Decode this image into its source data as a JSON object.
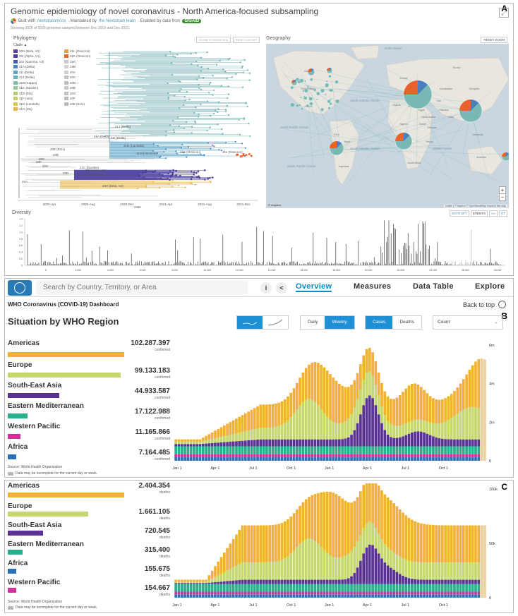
{
  "panel_a": {
    "letter": "A",
    "title": "Genomic epidemiology of novel coronavirus - North America-focused subsampling",
    "built_with": "Built with",
    "built_with_link": "nextstrain/ncov",
    "maintained_by": ". Maintained by",
    "maintained_link": "the Nextstrain team",
    "enabled_by": ". Enabled by data from",
    "gisaid": "GISAID",
    "showing": "Showing 2026 of 2026 genomes sampled between Dec 2019 and Dec 2021.",
    "phylogeny_title": "Phylogeny",
    "color_label": "Clade ▲",
    "zoom_selected": "ZOOM TO SELECTED",
    "reset_layout": "RESET LAYOUT",
    "legend": [
      {
        "label": "20H (Beta, V2)",
        "color": "#5e3c99"
      },
      {
        "label": "21L (Omicron)",
        "color": "#e8a33c"
      },
      {
        "label": "20I (Alpha, V1)",
        "color": "#4b3fa0"
      },
      {
        "label": "21K (Omicron)",
        "color": "#e8622c"
      },
      {
        "label": "20J (Gamma, V3)",
        "color": "#3f5bb3"
      },
      {
        "label": "19A",
        "color": "#c9c9c9"
      },
      {
        "label": "21A (Delta)",
        "color": "#4a7fc1"
      },
      {
        "label": "19B",
        "color": "#d1d1d1"
      },
      {
        "label": "21I (Delta)",
        "color": "#5aa2c8"
      },
      {
        "label": "20A",
        "color": "#cfcfcf"
      },
      {
        "label": "21J (Delta)",
        "color": "#66b4b7"
      },
      {
        "label": "20C",
        "color": "#c4c4c4"
      },
      {
        "label": "21B (Kappa)",
        "color": "#79c0a7"
      },
      {
        "label": "20D",
        "color": "#bdbdbd"
      },
      {
        "label": "21C (Epsilon)",
        "color": "#93c88f"
      },
      {
        "label": "20B",
        "color": "#c8c8c8"
      },
      {
        "label": "21D (Eta)",
        "color": "#afcd77"
      },
      {
        "label": "20G",
        "color": "#c0c0c0"
      },
      {
        "label": "21F (Iota)",
        "color": "#c8ce64"
      },
      {
        "label": "20F",
        "color": "#bcbcbc"
      },
      {
        "label": "21G (Lambda)",
        "color": "#ddc756"
      },
      {
        "label": "20E (EU1)",
        "color": "#b8b8b8"
      },
      {
        "label": "21H (Mu)",
        "color": "#e8b84d"
      }
    ],
    "clade_labels": [
      "21J (Delta)",
      "21A (Delta)",
      "21I (Delta)",
      "21G (Lambda)",
      "21M (Omicron)",
      "21K (Omicron)",
      "21L (Omicron)",
      "20I (Alpha, V1)",
      "21C (Epsilon)",
      "20J (Gamma, V3)",
      "20H (Beta, V2)",
      "20B",
      "20C",
      "20E (EU1)",
      "20A",
      "20G",
      "20F",
      "20D"
    ],
    "tree_ticks": [
      "2020-Apr",
      "2020-Aug",
      "2020-Dec",
      "2021-Apr",
      "2021-Aug",
      "2021-Dec"
    ],
    "tree_axis_label": "Date",
    "geography_title": "Geography",
    "reset_zoom": "RESET ZOOM",
    "map_labels": [
      "Arctic Ocean",
      "North Atlantic Ocean",
      "North Pacific Ocean",
      "South Atlantic Ocean",
      "Indian Ocean",
      "South Pacific Ocean",
      "Canada",
      "United States",
      "Mexico",
      "Brazil",
      "Peru",
      "Argentina",
      "Europe",
      "Algeria",
      "Libya",
      "Egypt",
      "Sudan",
      "Nigeria",
      "Ethiopia",
      "Kenya",
      "South Africa",
      "Russia",
      "Kazakhstan",
      "China",
      "Iran",
      "India",
      "Pakistan",
      "Mongolia",
      "Indonesia",
      "Australia",
      "Saudi Arabia"
    ],
    "map_attribution": "Leaflet | © Mapbox © OpenStreetMap Improve this map",
    "mapbox_label": "© mapbox",
    "zoom_in": "+",
    "zoom_out": "−",
    "diversity_title": "Diversity",
    "entropy_tab": "ENTROPY",
    "events_tab": "EVENTS",
    "aa_tab": "AA",
    "nt_tab": "NT",
    "diversity_ticks": [
      "0",
      "2,000",
      "4,000",
      "6,000",
      "8,000",
      "10,000",
      "12,000",
      "14,000",
      "16,000",
      "18,000",
      "20,000",
      "22,000",
      "24,000",
      "26,000",
      "28,000"
    ],
    "diversity_y": [
      "0",
      "0.2",
      "0.4",
      "0.6",
      "0.8",
      "1.0",
      "1.2",
      "1.4"
    ]
  },
  "panel_b": {
    "letter": "B",
    "search_placeholder": "Search by Country, Territory, or Area",
    "info_icon": "i",
    "share_icon": "<",
    "nav": [
      "Overview",
      "Measures",
      "Data Table",
      "Explore"
    ],
    "dashboard_title": "WHO Coronavirus (COVID-19) Dashboard",
    "back_to_top": "Back to top",
    "section_title": "Situation by WHO Region",
    "daily": "Daily",
    "weekly": "Weekly",
    "cases": "Cases",
    "deaths": "Deaths",
    "count": "Count",
    "regions": [
      {
        "name": "Americas",
        "value": "102.287.397",
        "sub": "confirmed",
        "color": "#f2b134",
        "share": 1.0
      },
      {
        "name": "Europe",
        "value": "99.133.183",
        "sub": "confirmed",
        "color": "#c5d86d",
        "share": 0.97
      },
      {
        "name": "South-East Asia",
        "value": "44.933.587",
        "sub": "confirmed",
        "color": "#5a3296",
        "share": 0.44
      },
      {
        "name": "Eastern Mediterranean",
        "value": "17.122.988",
        "sub": "confirmed",
        "color": "#27b08c",
        "share": 0.17
      },
      {
        "name": "Western Pacific",
        "value": "11.165.866",
        "sub": "confirmed",
        "color": "#d12f9c",
        "share": 0.11
      },
      {
        "name": "Africa",
        "value": "7.164.485",
        "sub": "confirmed",
        "color": "#2a6fb8",
        "share": 0.07
      }
    ],
    "source": "Source: World Health Organization",
    "incomplete_note": "Data may be incomplete for the current day or week.",
    "chart_data": {
      "type": "bar",
      "stacked": true,
      "title": "",
      "x_ticks": [
        "Jan 1",
        "Apr 1",
        "Jul 1",
        "Oct 1",
        "Jan 1",
        "Apr 1",
        "Jul 1",
        "Oct 1"
      ],
      "y_ticks": [
        "0",
        "2m",
        "4m",
        "6m"
      ],
      "ylim": [
        0,
        6000000
      ],
      "series_order": [
        "Africa",
        "Western Pacific",
        "Eastern Mediterranean",
        "South-East Asia",
        "Europe",
        "Americas"
      ]
    }
  },
  "panel_c": {
    "letter": "C",
    "regions": [
      {
        "name": "Americas",
        "value": "2.404.354",
        "sub": "deaths",
        "color": "#f2b134",
        "share": 1.0
      },
      {
        "name": "Europe",
        "value": "1.661.105",
        "sub": "deaths",
        "color": "#c5d86d",
        "share": 0.69
      },
      {
        "name": "South-East Asia",
        "value": "720.545",
        "sub": "deaths",
        "color": "#5a3296",
        "share": 0.3
      },
      {
        "name": "Eastern Mediterranean",
        "value": "315.400",
        "sub": "deaths",
        "color": "#27b08c",
        "share": 0.13
      },
      {
        "name": "Africa",
        "value": "155.675",
        "sub": "deaths",
        "color": "#2a6fb8",
        "share": 0.065
      },
      {
        "name": "Western Pacific",
        "value": "154.667",
        "sub": "deaths",
        "color": "#d12f9c",
        "share": 0.064
      }
    ],
    "source": "Source: World Health Organization",
    "incomplete_note": "Data may be incomplete for the current day or week.",
    "chart_data": {
      "type": "bar",
      "stacked": true,
      "x_ticks": [
        "Jan 1",
        "Apr 1",
        "Jul 1",
        "Oct 1",
        "Jan 1",
        "Apr 1",
        "Jul 1",
        "Oct 1"
      ],
      "y_ticks": [
        "0",
        "50k",
        "100k"
      ],
      "ylim": [
        0,
        100000
      ],
      "series_order": [
        "Africa",
        "Western Pacific",
        "Eastern Mediterranean",
        "South-East Asia",
        "Europe",
        "Americas"
      ]
    }
  }
}
